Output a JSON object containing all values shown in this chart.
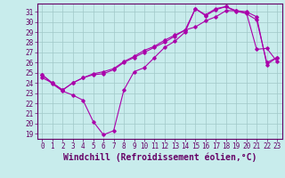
{
  "xlabel": "Windchill (Refroidissement éolien,°C)",
  "background_color": "#c8ecec",
  "grid_color": "#a0c8c8",
  "line_color": "#aa00aa",
  "xlim": [
    -0.5,
    23.5
  ],
  "ylim": [
    18.5,
    31.8
  ],
  "xticks": [
    0,
    1,
    2,
    3,
    4,
    5,
    6,
    7,
    8,
    9,
    10,
    11,
    12,
    13,
    14,
    15,
    16,
    17,
    18,
    19,
    20,
    21,
    22,
    23
  ],
  "yticks": [
    19,
    20,
    21,
    22,
    23,
    24,
    25,
    26,
    27,
    28,
    29,
    30,
    31
  ],
  "line1_x": [
    0,
    1,
    2,
    3,
    4,
    5,
    6,
    7,
    8,
    9,
    10,
    11,
    12,
    13,
    14,
    15,
    16,
    17,
    18,
    19,
    20,
    21,
    22,
    23
  ],
  "line1_y": [
    24.8,
    23.9,
    23.2,
    22.8,
    22.3,
    20.2,
    18.9,
    19.3,
    23.3,
    25.1,
    25.5,
    26.5,
    27.5,
    28.1,
    29.0,
    31.3,
    30.6,
    31.2,
    31.5,
    31.0,
    30.9,
    27.3,
    27.4,
    26.1
  ],
  "line2_x": [
    0,
    1,
    2,
    3,
    4,
    5,
    6,
    7,
    8,
    9,
    10,
    11,
    12,
    13,
    14,
    15,
    16,
    17,
    18,
    19,
    20,
    21,
    22,
    23
  ],
  "line2_y": [
    24.8,
    24.0,
    23.3,
    24.0,
    24.5,
    24.8,
    24.9,
    25.3,
    26.0,
    26.5,
    27.0,
    27.5,
    28.0,
    28.6,
    29.2,
    29.5,
    30.1,
    30.5,
    31.1,
    31.1,
    30.8,
    30.2,
    26.0,
    26.5
  ],
  "line3_x": [
    0,
    1,
    2,
    3,
    4,
    5,
    6,
    7,
    8,
    9,
    10,
    11,
    12,
    13,
    14,
    15,
    16,
    17,
    18,
    19,
    20,
    21,
    22,
    23
  ],
  "line3_y": [
    24.5,
    24.0,
    23.3,
    24.0,
    24.5,
    24.9,
    25.1,
    25.4,
    26.1,
    26.6,
    27.2,
    27.6,
    28.2,
    28.7,
    29.2,
    31.3,
    30.7,
    31.3,
    31.5,
    31.1,
    31.0,
    30.5,
    25.8,
    26.5
  ],
  "tick_fontsize": 5.5,
  "xlabel_fontsize": 7.0
}
